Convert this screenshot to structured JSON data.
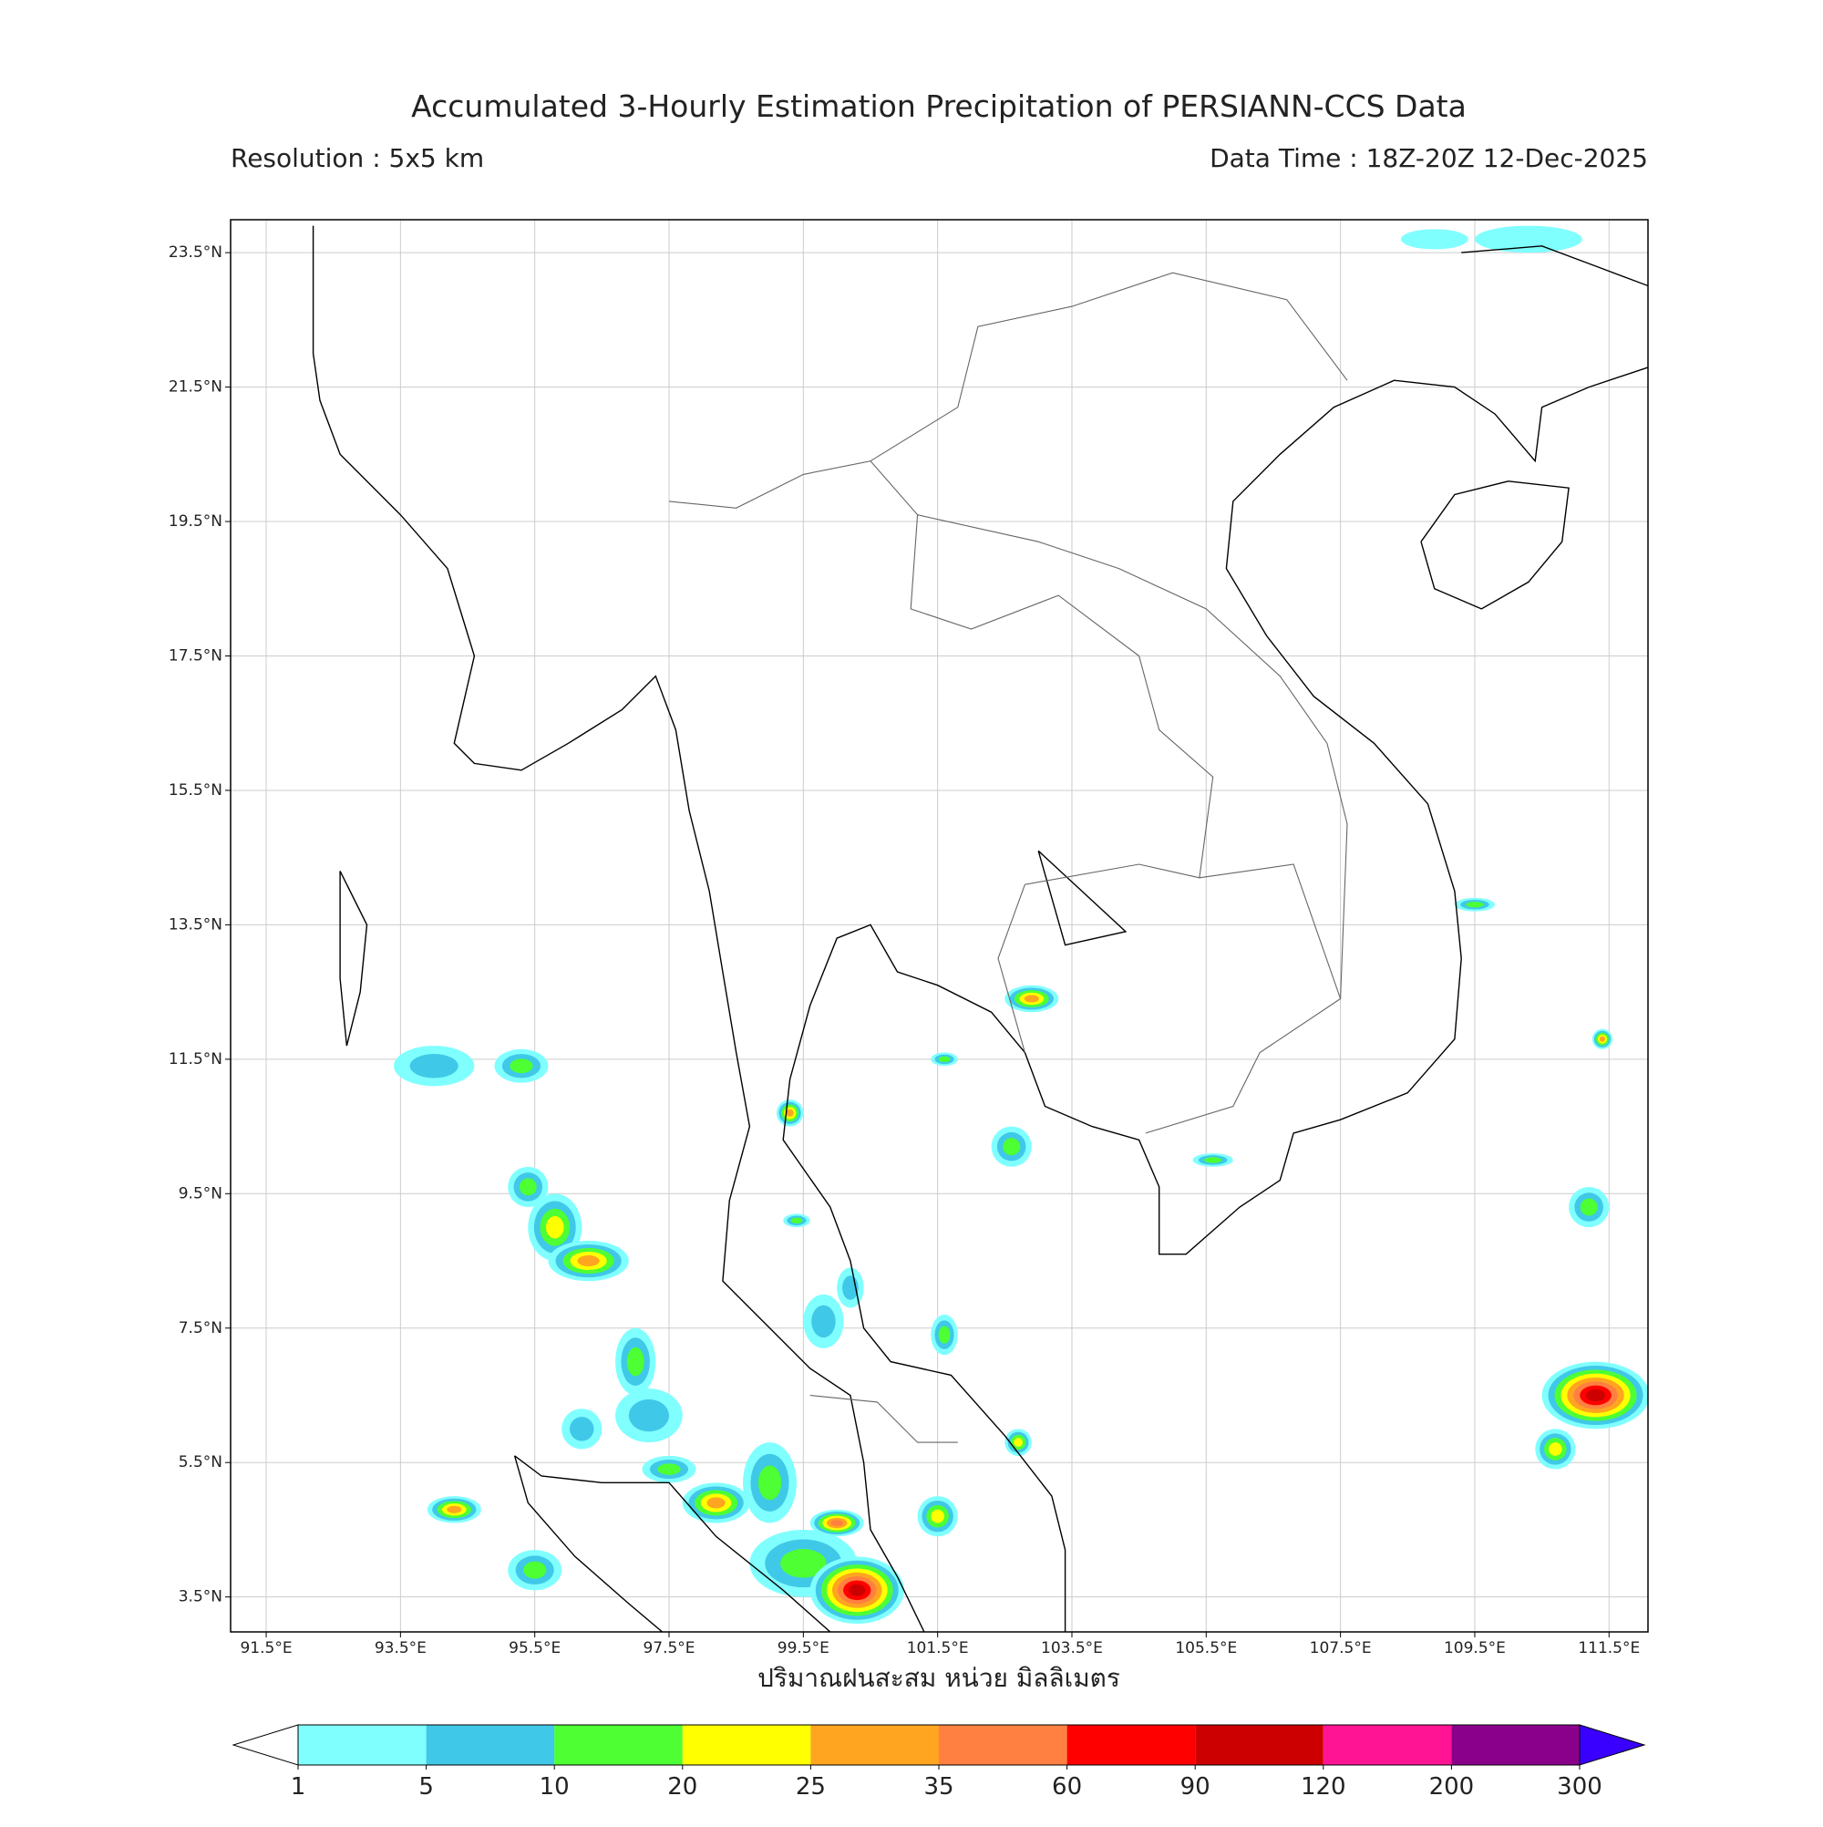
{
  "header": {
    "title": "Accumulated 3-Hourly Estimation Precipitation of PERSIANN-CCS Data",
    "resolution": "Resolution : 5x5 km",
    "data_time": "Data Time : 18Z-20Z 12-Dec-2025"
  },
  "map": {
    "xlim": [
      90.97,
      112.08
    ],
    "ylim": [
      2.98,
      23.99
    ],
    "xticks": [
      {
        "value": 91.5,
        "label": "91.5°E"
      },
      {
        "value": 93.5,
        "label": "93.5°E"
      },
      {
        "value": 95.5,
        "label": "95.5°E"
      },
      {
        "value": 97.5,
        "label": "97.5°E"
      },
      {
        "value": 99.5,
        "label": "99.5°E"
      },
      {
        "value": 101.5,
        "label": "101.5°E"
      },
      {
        "value": 103.5,
        "label": "103.5°E"
      },
      {
        "value": 105.5,
        "label": "105.5°E"
      },
      {
        "value": 107.5,
        "label": "107.5°E"
      },
      {
        "value": 109.5,
        "label": "109.5°E"
      },
      {
        "value": 111.5,
        "label": "111.5°E"
      }
    ],
    "yticks": [
      {
        "value": 23.5,
        "label": "23.5°N"
      },
      {
        "value": 21.5,
        "label": "21.5°N"
      },
      {
        "value": 19.5,
        "label": "19.5°N"
      },
      {
        "value": 17.5,
        "label": "17.5°N"
      },
      {
        "value": 15.5,
        "label": "15.5°N"
      },
      {
        "value": 13.5,
        "label": "13.5°N"
      },
      {
        "value": 11.5,
        "label": "11.5°N"
      },
      {
        "value": 9.5,
        "label": "9.5°N"
      },
      {
        "value": 7.5,
        "label": "7.5°N"
      },
      {
        "value": 5.5,
        "label": "5.5°N"
      },
      {
        "value": 3.5,
        "label": "3.5°N"
      }
    ],
    "grid": true
  },
  "colorbar": {
    "label": "ปริมาณฝนสะสม หน่วย มิลลิเมตร",
    "levels": [
      1,
      5,
      10,
      20,
      25,
      35,
      60,
      90,
      120,
      200,
      300
    ],
    "colors": [
      "#80ffff",
      "#40c8e8",
      "#4dff33",
      "#ffff00",
      "#ffa520",
      "#ff8040",
      "#ff0000",
      "#cc0000",
      "#ff1493",
      "#8b008b"
    ],
    "under_color": "#ffffff",
    "over_color": "#3a00ff"
  }
}
